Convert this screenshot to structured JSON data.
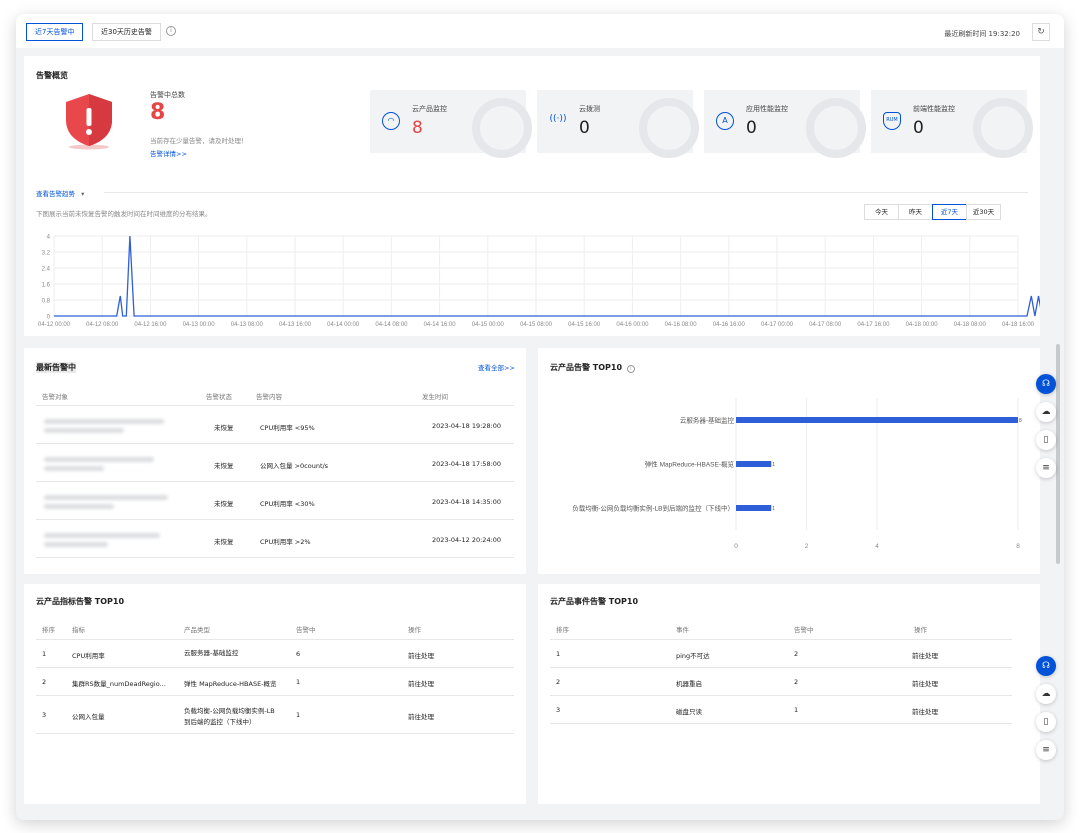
{
  "top_tabs": [
    {
      "label": "近7天告警中"
    },
    {
      "label": "近30天历史告警"
    }
  ],
  "refresh_text": "最近刷新时间 19:32:20",
  "overview": {
    "title": "告警概览",
    "total_label": "告警中总数",
    "total_value": "8",
    "hint": "当前存在少量告警，请及时处理！",
    "detail_link": "告警详情>>",
    "cards": [
      {
        "label": "云产品监控",
        "value": "8",
        "icon": "cloud-monitor-icon"
      },
      {
        "label": "云拨测",
        "value": "0",
        "icon": "signal-icon"
      },
      {
        "label": "应用性能监控",
        "value": "0",
        "icon": "apm-icon"
      },
      {
        "label": "前端性能监控",
        "value": "0",
        "icon": "rum-icon"
      }
    ],
    "trend_toggle": "查看告警趋势",
    "trend_desc": "下图展示当前未恢复告警的触发时间在时间维度的分布结果。",
    "ranges": [
      {
        "label": "今天"
      },
      {
        "label": "昨天"
      },
      {
        "label": "近7天"
      },
      {
        "label": "近30天"
      }
    ]
  },
  "chart_data": {
    "type": "line",
    "yticks": [
      "4",
      "3.2",
      "2.4",
      "1.6",
      "0.8",
      "0"
    ],
    "ylim": [
      0,
      4
    ],
    "xticks": [
      "04-12 00:00",
      "04-12 08:00",
      "04-12 16:00",
      "04-13 00:00",
      "04-13 08:00",
      "04-13 16:00",
      "04-14 00:00",
      "04-14 08:00",
      "04-14 16:00",
      "04-15 00:00",
      "04-15 08:00",
      "04-15 16:00",
      "04-16 00:00",
      "04-16 08:00",
      "04-16 16:00",
      "04-17 00:00",
      "04-17 08:00",
      "04-17 16:00",
      "04-18 00:00",
      "04-18 08:00",
      "04-18 16:00"
    ],
    "series": [
      {
        "color": "#2e5fd8",
        "points": [
          [
            0,
            0
          ],
          [
            10.4,
            0
          ],
          [
            11,
            1
          ],
          [
            11.4,
            0
          ],
          [
            12,
            0
          ],
          [
            12.6,
            4
          ],
          [
            13.3,
            0
          ],
          [
            161.5,
            0
          ],
          [
            162.2,
            1
          ],
          [
            162.8,
            0
          ],
          [
            163.4,
            1
          ],
          [
            164,
            0
          ],
          [
            164.6,
            1
          ]
        ]
      }
    ],
    "x_span_hours": 164.6
  },
  "latest_alarms": {
    "title": "最新告警中",
    "view_all": "查看全部>>",
    "headers": [
      "告警对象",
      "告警状态",
      "告警内容",
      "发生时间"
    ],
    "rows": [
      {
        "status": "未恢复",
        "content": "CPU利用率 <95%",
        "time": "2023-04-18 19:28:00"
      },
      {
        "status": "未恢复",
        "content": "公网入包量 >0count/s",
        "time": "2023-04-18 17:58:00"
      },
      {
        "status": "未恢复",
        "content": "CPU利用率 <30%",
        "time": "2023-04-18 14:35:00"
      },
      {
        "status": "未恢复",
        "content": "CPU利用率 >2%",
        "time": "2023-04-12 20:24:00"
      }
    ]
  },
  "top10_product": {
    "title": "云产品告警 TOP10",
    "bars": [
      {
        "label": "云服务器-基础监控",
        "value": 8,
        "value_label": "8"
      },
      {
        "label": "弹性 MapReduce-HBASE-概览",
        "value": 1,
        "value_label": "1"
      },
      {
        "label": "负载均衡-公网负载均衡实例-LB到后端的监控（下线中）",
        "value": 1,
        "value_label": "1"
      }
    ],
    "xticks": [
      "0",
      "2",
      "4",
      "8"
    ],
    "xmax": 8
  },
  "metric_top10": {
    "title": "云产品指标告警 TOP10",
    "headers": [
      "排序",
      "指标",
      "产品类型",
      "告警中",
      "操作"
    ],
    "rows": [
      {
        "rank": "1",
        "metric": "CPU利用率",
        "product": "云服务器-基础监控",
        "product2": "",
        "count": "6",
        "action": "前往处理"
      },
      {
        "rank": "2",
        "metric": "集群RS数量_numDeadRegio...",
        "product": "弹性 MapReduce-HBASE-概览",
        "product2": "",
        "count": "1",
        "action": "前往处理"
      },
      {
        "rank": "3",
        "metric": "公网入包量",
        "product": "负载均衡-公网负载均衡实例-LB",
        "product2": "到后端的监控（下线中）",
        "count": "1",
        "action": "前往处理"
      }
    ]
  },
  "event_top10": {
    "title": "云产品事件告警 TOP10",
    "headers": [
      "排序",
      "事件",
      "告警中",
      "操作"
    ],
    "rows": [
      {
        "rank": "1",
        "event": "ping不可达",
        "count": "2",
        "action": "前往处理"
      },
      {
        "rank": "2",
        "event": "机器重启",
        "count": "2",
        "action": "前往处理"
      },
      {
        "rank": "3",
        "event": "磁盘只读",
        "count": "1",
        "action": "前往处理"
      }
    ]
  },
  "colors": {
    "primary": "#0052d9",
    "danger": "#e54545",
    "line": "#2e5fd8",
    "shield": "#e8474c"
  }
}
